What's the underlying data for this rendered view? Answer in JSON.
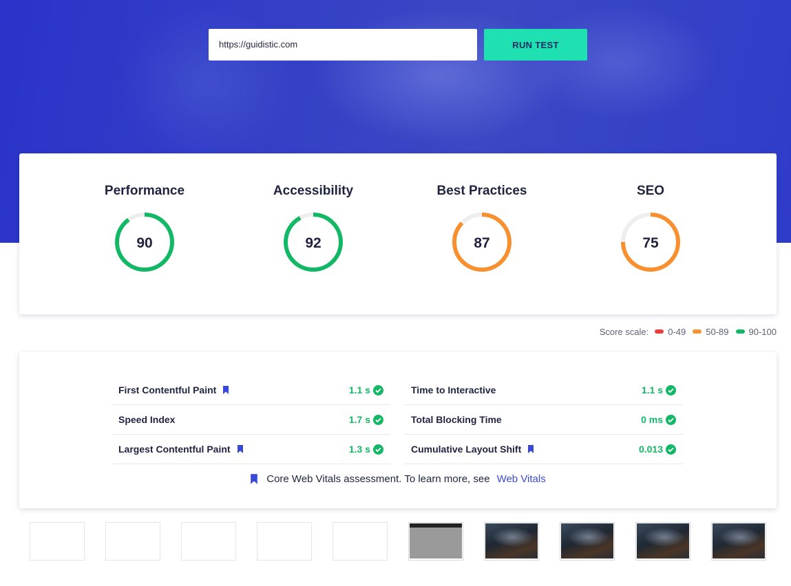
{
  "search": {
    "url_value": "https://guidistic.com",
    "run_label": "RUN TEST"
  },
  "scores": [
    {
      "name": "Performance",
      "value": 90,
      "color": "#12b866"
    },
    {
      "name": "Accessibility",
      "value": 92,
      "color": "#12b866"
    },
    {
      "name": "Best Practices",
      "value": 87,
      "color": "#f8902f"
    },
    {
      "name": "SEO",
      "value": 75,
      "color": "#f8902f"
    }
  ],
  "score_scale": {
    "label": "Score scale:",
    "ranges": [
      {
        "label": "0-49",
        "color": "#f03e3e"
      },
      {
        "label": "50-89",
        "color": "#f8902f"
      },
      {
        "label": "90-100",
        "color": "#12b866"
      }
    ]
  },
  "metrics": {
    "left": [
      {
        "name": "First Contentful Paint",
        "value": "1.1 s",
        "core": true
      },
      {
        "name": "Speed Index",
        "value": "1.7 s",
        "core": false
      },
      {
        "name": "Largest Contentful Paint",
        "value": "1.3 s",
        "core": true
      }
    ],
    "right": [
      {
        "name": "Time to Interactive",
        "value": "1.1 s",
        "core": false
      },
      {
        "name": "Total Blocking Time",
        "value": "0 ms",
        "core": false
      },
      {
        "name": "Cumulative Layout Shift",
        "value": "0.013",
        "core": true
      }
    ]
  },
  "note": {
    "text": "Core Web Vitals assessment. To learn more, see",
    "link": "Web Vitals"
  },
  "accent": "#3a48d6"
}
